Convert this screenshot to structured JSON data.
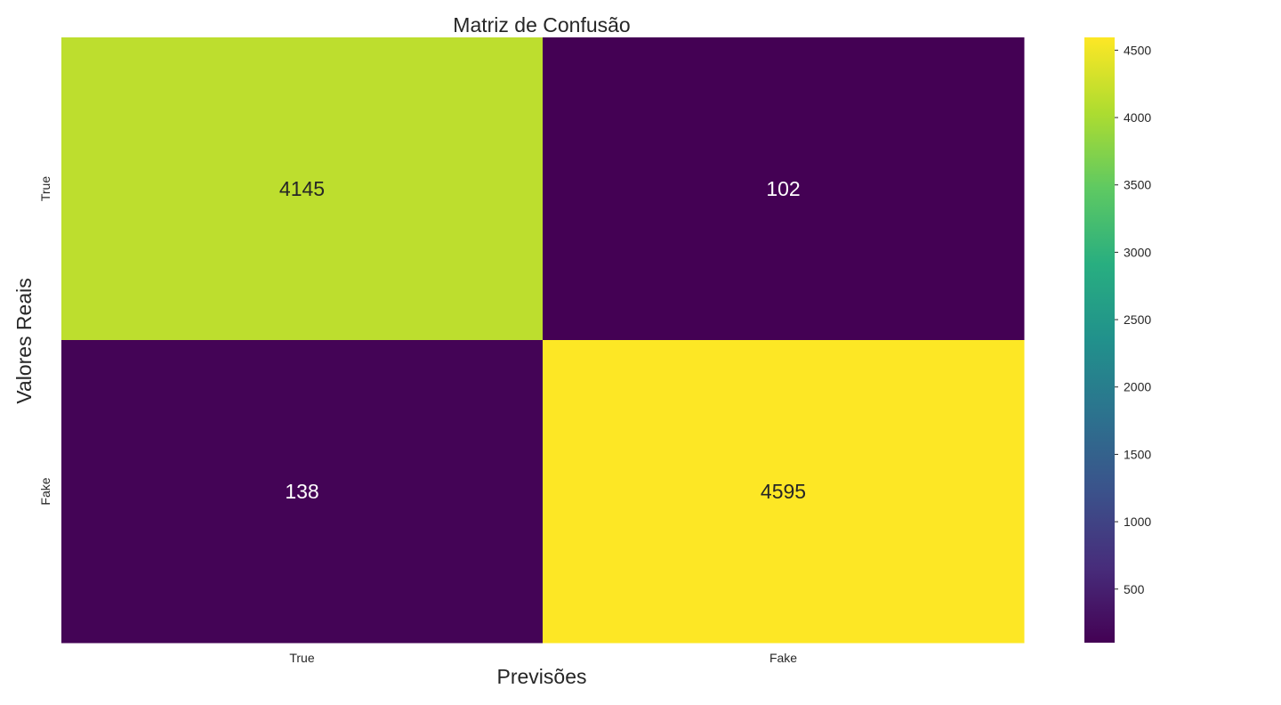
{
  "chart_data": {
    "type": "heatmap",
    "title": "Matriz de Confusão",
    "xlabel": "Previsões",
    "ylabel": "Valores Reais",
    "x_categories": [
      "True",
      "Fake"
    ],
    "y_categories": [
      "True",
      "Fake"
    ],
    "values": [
      [
        4145,
        102
      ],
      [
        138,
        4595
      ]
    ],
    "colormap": "viridis",
    "colorbar": {
      "min": 102,
      "max": 4595,
      "ticks": [
        500,
        1000,
        1500,
        2000,
        2500,
        3000,
        3500,
        4000,
        4500
      ]
    },
    "grid": false,
    "annotations": true
  }
}
